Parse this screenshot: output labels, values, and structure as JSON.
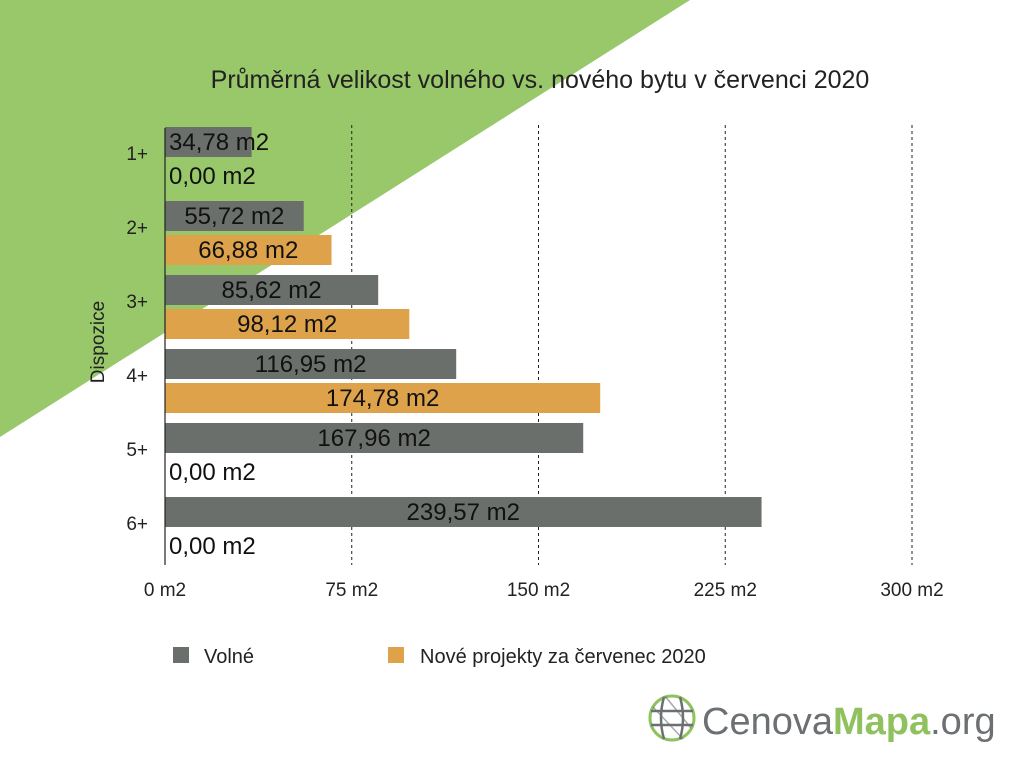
{
  "chart_data": {
    "type": "bar",
    "orientation": "horizontal",
    "title": "Průměrná velikost volného vs. nového bytu v červenci 2020",
    "ylabel": "Dispozice",
    "xlabel": "",
    "categories": [
      "1+",
      "2+",
      "3+",
      "4+",
      "5+",
      "6+"
    ],
    "xlim": [
      0,
      300
    ],
    "x_ticks": [
      0,
      75,
      150,
      225,
      300
    ],
    "x_tick_labels": [
      "0  m2",
      "75  m2",
      "150  m2",
      "225  m2",
      "300  m2"
    ],
    "grid": "vertical dashed",
    "legend_position": "bottom",
    "series": [
      {
        "name": "Volné",
        "color": "#6b6f6b",
        "values": [
          34.78,
          55.72,
          85.62,
          116.95,
          167.96,
          239.57
        ],
        "labels": [
          "34,78 m2",
          "55,72 m2",
          "85,62 m2",
          "116,95 m2",
          "167,96 m2",
          "239,57 m2"
        ]
      },
      {
        "name": "Nové projekty za červenec 2020",
        "color": "#dea34a",
        "values": [
          0,
          66.88,
          98.12,
          174.78,
          0,
          0
        ],
        "labels": [
          "0,00 m2",
          "66,88 m2",
          "98,12 m2",
          "174,78 m2",
          "0,00 m2",
          "0,00 m2"
        ]
      }
    ]
  },
  "logo": {
    "part1": "Cenova",
    "part2": "Mapa",
    "part3": ".org",
    "icon": "globe-grid-icon",
    "color_gray": "#6d7072",
    "color_green": "#8fc15e"
  },
  "background": {
    "accent_color": "#98c86a"
  }
}
